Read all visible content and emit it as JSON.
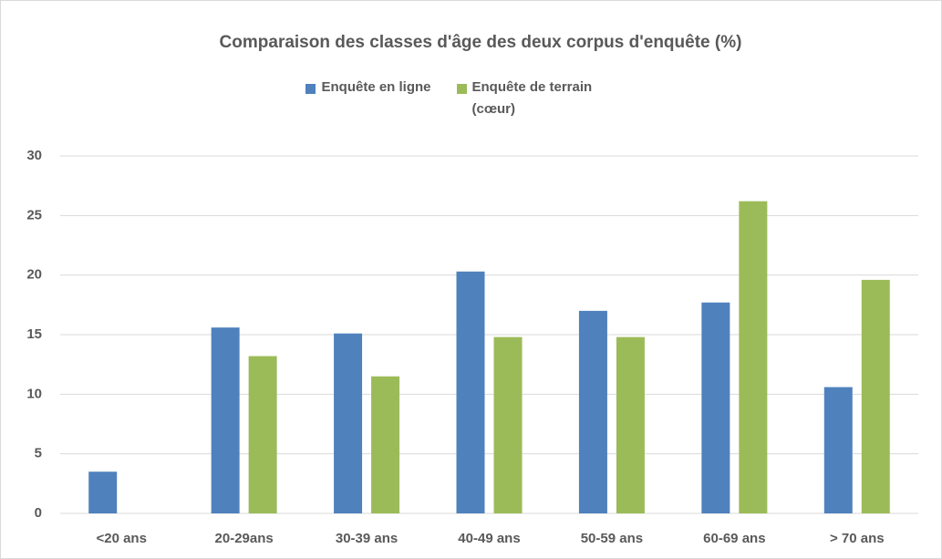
{
  "chart_data": {
    "type": "bar",
    "title": "Comparaison des classes d'âge des deux corpus d'enquête (%)",
    "categories": [
      "<20 ans",
      "20-29ans",
      "30-39 ans",
      "40-49 ans",
      "50-59 ans",
      "60-69 ans",
      "> 70 ans"
    ],
    "series": [
      {
        "name": "Enquête en ligne",
        "color": "#4f81bd",
        "values": [
          3.5,
          15.6,
          15.1,
          20.3,
          17.0,
          17.7,
          10.6
        ]
      },
      {
        "name": "Enquête de terrain (cœur)",
        "color": "#9bbb59",
        "values": [
          0,
          13.2,
          11.5,
          14.8,
          14.8,
          26.2,
          19.6
        ]
      }
    ],
    "ylim": [
      0,
      30
    ],
    "yticks": [
      0,
      5,
      10,
      15,
      20,
      25,
      30
    ],
    "grid": true,
    "legend": "top"
  }
}
